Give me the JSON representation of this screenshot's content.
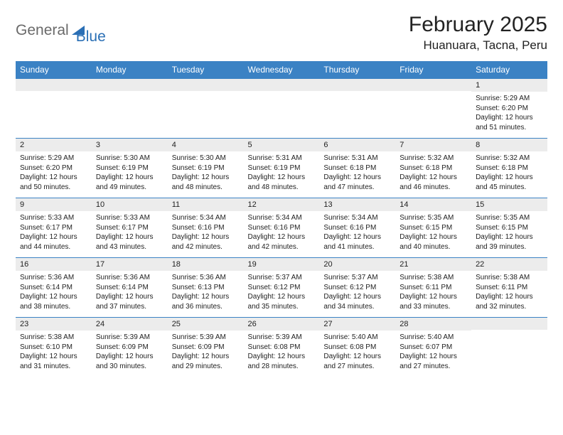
{
  "logo": {
    "word1": "General",
    "word2": "Blue"
  },
  "title": "February 2025",
  "location": "Huanuara, Tacna, Peru",
  "weekdays": [
    "Sunday",
    "Monday",
    "Tuesday",
    "Wednesday",
    "Thursday",
    "Friday",
    "Saturday"
  ],
  "header_bg": "#3b82c4",
  "header_fg": "#ffffff",
  "daynum_bg": "#ececec",
  "border_color": "#3b82c4",
  "body_font_size": 10,
  "daynum_font_size": 11,
  "weeks": [
    [
      {
        "n": "",
        "sunrise": "",
        "sunset": "",
        "daylight": ""
      },
      {
        "n": "",
        "sunrise": "",
        "sunset": "",
        "daylight": ""
      },
      {
        "n": "",
        "sunrise": "",
        "sunset": "",
        "daylight": ""
      },
      {
        "n": "",
        "sunrise": "",
        "sunset": "",
        "daylight": ""
      },
      {
        "n": "",
        "sunrise": "",
        "sunset": "",
        "daylight": ""
      },
      {
        "n": "",
        "sunrise": "",
        "sunset": "",
        "daylight": ""
      },
      {
        "n": "1",
        "sunrise": "Sunrise: 5:29 AM",
        "sunset": "Sunset: 6:20 PM",
        "daylight": "Daylight: 12 hours and 51 minutes."
      }
    ],
    [
      {
        "n": "2",
        "sunrise": "Sunrise: 5:29 AM",
        "sunset": "Sunset: 6:20 PM",
        "daylight": "Daylight: 12 hours and 50 minutes."
      },
      {
        "n": "3",
        "sunrise": "Sunrise: 5:30 AM",
        "sunset": "Sunset: 6:19 PM",
        "daylight": "Daylight: 12 hours and 49 minutes."
      },
      {
        "n": "4",
        "sunrise": "Sunrise: 5:30 AM",
        "sunset": "Sunset: 6:19 PM",
        "daylight": "Daylight: 12 hours and 48 minutes."
      },
      {
        "n": "5",
        "sunrise": "Sunrise: 5:31 AM",
        "sunset": "Sunset: 6:19 PM",
        "daylight": "Daylight: 12 hours and 48 minutes."
      },
      {
        "n": "6",
        "sunrise": "Sunrise: 5:31 AM",
        "sunset": "Sunset: 6:18 PM",
        "daylight": "Daylight: 12 hours and 47 minutes."
      },
      {
        "n": "7",
        "sunrise": "Sunrise: 5:32 AM",
        "sunset": "Sunset: 6:18 PM",
        "daylight": "Daylight: 12 hours and 46 minutes."
      },
      {
        "n": "8",
        "sunrise": "Sunrise: 5:32 AM",
        "sunset": "Sunset: 6:18 PM",
        "daylight": "Daylight: 12 hours and 45 minutes."
      }
    ],
    [
      {
        "n": "9",
        "sunrise": "Sunrise: 5:33 AM",
        "sunset": "Sunset: 6:17 PM",
        "daylight": "Daylight: 12 hours and 44 minutes."
      },
      {
        "n": "10",
        "sunrise": "Sunrise: 5:33 AM",
        "sunset": "Sunset: 6:17 PM",
        "daylight": "Daylight: 12 hours and 43 minutes."
      },
      {
        "n": "11",
        "sunrise": "Sunrise: 5:34 AM",
        "sunset": "Sunset: 6:16 PM",
        "daylight": "Daylight: 12 hours and 42 minutes."
      },
      {
        "n": "12",
        "sunrise": "Sunrise: 5:34 AM",
        "sunset": "Sunset: 6:16 PM",
        "daylight": "Daylight: 12 hours and 42 minutes."
      },
      {
        "n": "13",
        "sunrise": "Sunrise: 5:34 AM",
        "sunset": "Sunset: 6:16 PM",
        "daylight": "Daylight: 12 hours and 41 minutes."
      },
      {
        "n": "14",
        "sunrise": "Sunrise: 5:35 AM",
        "sunset": "Sunset: 6:15 PM",
        "daylight": "Daylight: 12 hours and 40 minutes."
      },
      {
        "n": "15",
        "sunrise": "Sunrise: 5:35 AM",
        "sunset": "Sunset: 6:15 PM",
        "daylight": "Daylight: 12 hours and 39 minutes."
      }
    ],
    [
      {
        "n": "16",
        "sunrise": "Sunrise: 5:36 AM",
        "sunset": "Sunset: 6:14 PM",
        "daylight": "Daylight: 12 hours and 38 minutes."
      },
      {
        "n": "17",
        "sunrise": "Sunrise: 5:36 AM",
        "sunset": "Sunset: 6:14 PM",
        "daylight": "Daylight: 12 hours and 37 minutes."
      },
      {
        "n": "18",
        "sunrise": "Sunrise: 5:36 AM",
        "sunset": "Sunset: 6:13 PM",
        "daylight": "Daylight: 12 hours and 36 minutes."
      },
      {
        "n": "19",
        "sunrise": "Sunrise: 5:37 AM",
        "sunset": "Sunset: 6:12 PM",
        "daylight": "Daylight: 12 hours and 35 minutes."
      },
      {
        "n": "20",
        "sunrise": "Sunrise: 5:37 AM",
        "sunset": "Sunset: 6:12 PM",
        "daylight": "Daylight: 12 hours and 34 minutes."
      },
      {
        "n": "21",
        "sunrise": "Sunrise: 5:38 AM",
        "sunset": "Sunset: 6:11 PM",
        "daylight": "Daylight: 12 hours and 33 minutes."
      },
      {
        "n": "22",
        "sunrise": "Sunrise: 5:38 AM",
        "sunset": "Sunset: 6:11 PM",
        "daylight": "Daylight: 12 hours and 32 minutes."
      }
    ],
    [
      {
        "n": "23",
        "sunrise": "Sunrise: 5:38 AM",
        "sunset": "Sunset: 6:10 PM",
        "daylight": "Daylight: 12 hours and 31 minutes."
      },
      {
        "n": "24",
        "sunrise": "Sunrise: 5:39 AM",
        "sunset": "Sunset: 6:09 PM",
        "daylight": "Daylight: 12 hours and 30 minutes."
      },
      {
        "n": "25",
        "sunrise": "Sunrise: 5:39 AM",
        "sunset": "Sunset: 6:09 PM",
        "daylight": "Daylight: 12 hours and 29 minutes."
      },
      {
        "n": "26",
        "sunrise": "Sunrise: 5:39 AM",
        "sunset": "Sunset: 6:08 PM",
        "daylight": "Daylight: 12 hours and 28 minutes."
      },
      {
        "n": "27",
        "sunrise": "Sunrise: 5:40 AM",
        "sunset": "Sunset: 6:08 PM",
        "daylight": "Daylight: 12 hours and 27 minutes."
      },
      {
        "n": "28",
        "sunrise": "Sunrise: 5:40 AM",
        "sunset": "Sunset: 6:07 PM",
        "daylight": "Daylight: 12 hours and 27 minutes."
      },
      {
        "n": "",
        "sunrise": "",
        "sunset": "",
        "daylight": ""
      }
    ]
  ]
}
